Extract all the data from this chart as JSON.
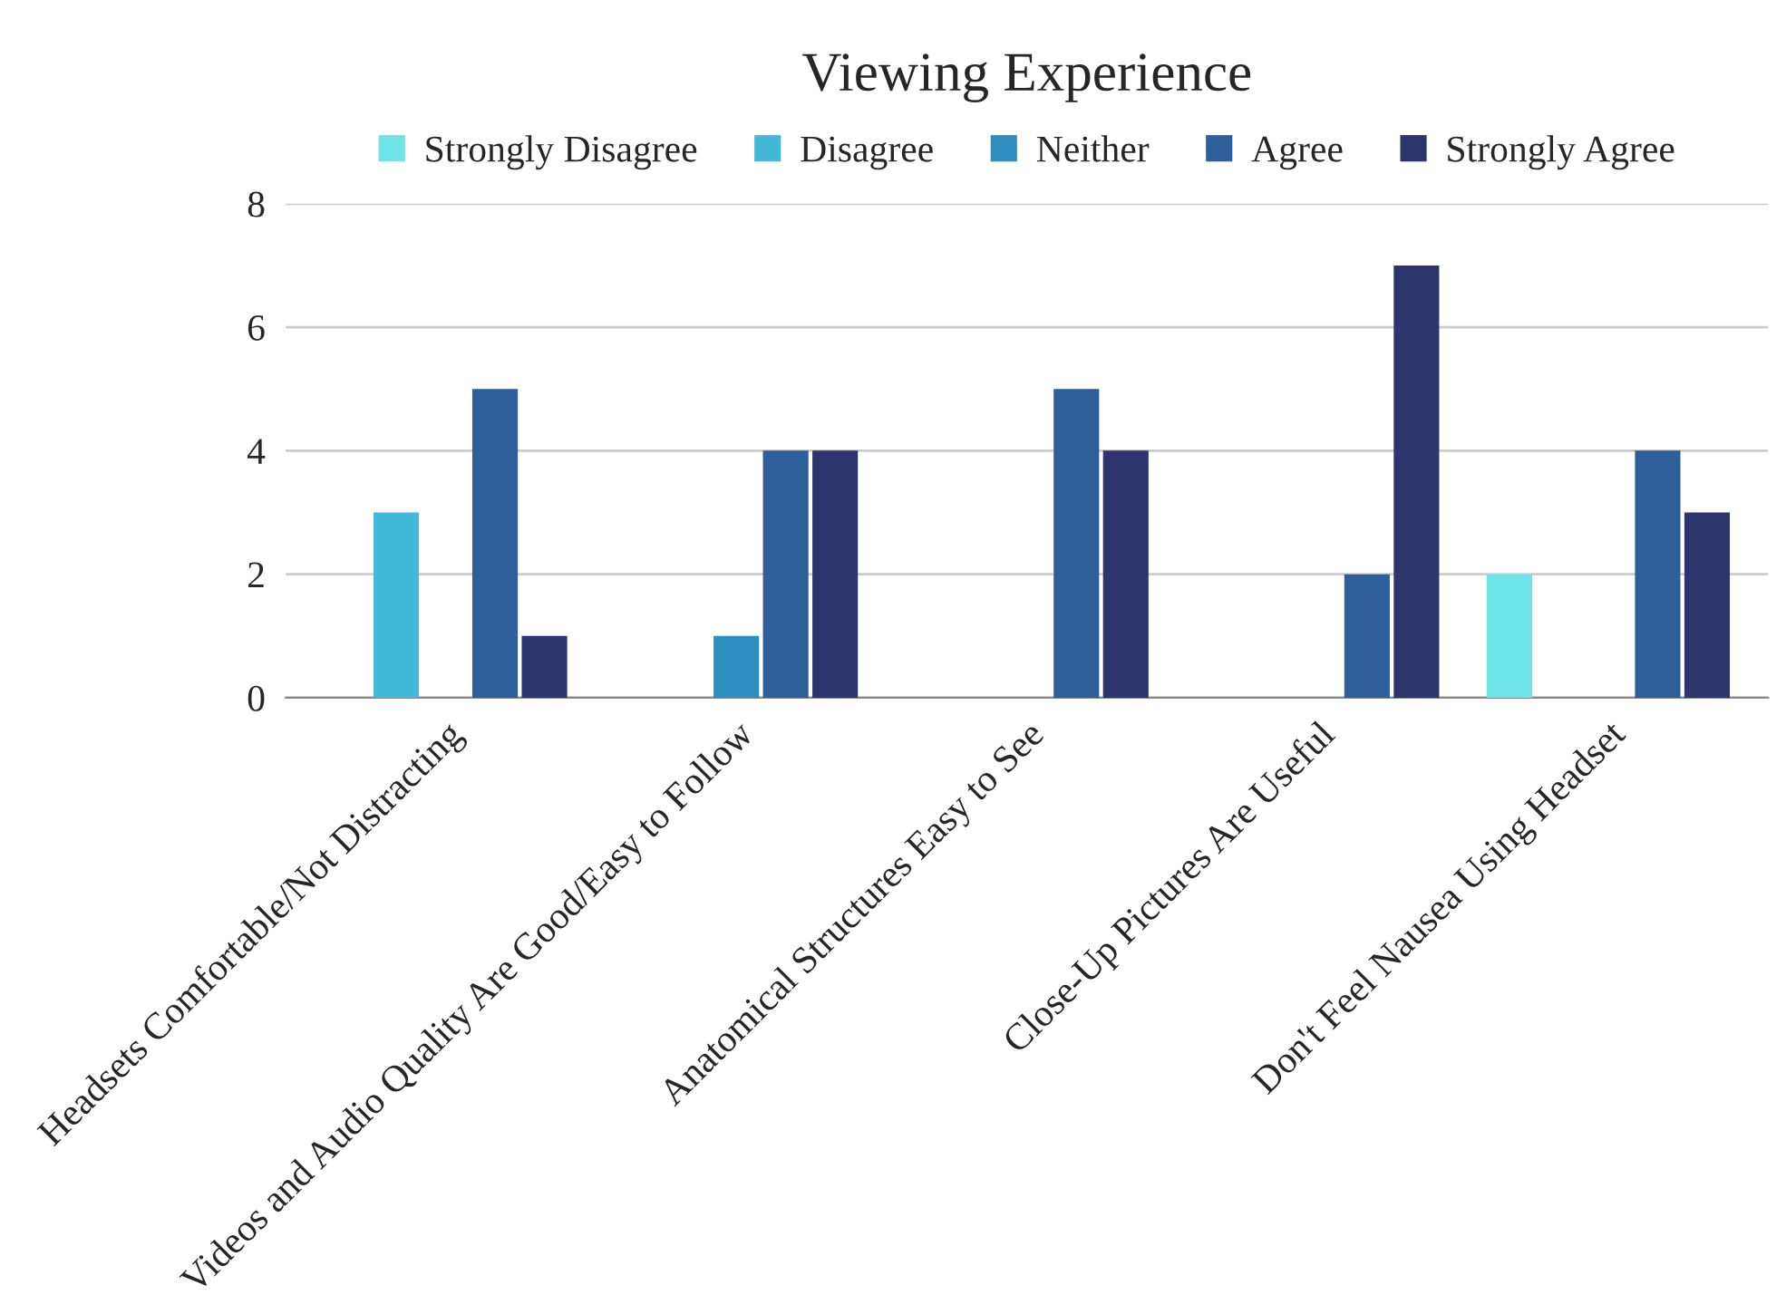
{
  "chart_data": {
    "type": "bar",
    "title": "Viewing Experience",
    "categories": [
      "Headsets Comfortable/Not Distracting",
      "Videos and Audio Quality Are Good/Easy to Follow",
      "Anatomical Structures Easy to See",
      "Close-Up Pictures Are Useful",
      "Don't Feel Nausea Using Headset"
    ],
    "series": [
      {
        "name": "Strongly Disagree",
        "color": "#6ee3e8",
        "values": [
          0,
          0,
          0,
          0,
          2
        ]
      },
      {
        "name": "Disagree",
        "color": "#44b8d8",
        "values": [
          3,
          0,
          0,
          0,
          0
        ]
      },
      {
        "name": "Neither",
        "color": "#2e8ec0",
        "values": [
          0,
          1,
          0,
          0,
          0
        ]
      },
      {
        "name": "Agree",
        "color": "#2e5f9a",
        "values": [
          5,
          4,
          5,
          2,
          4
        ]
      },
      {
        "name": "Strongly Agree",
        "color": "#2d356e",
        "values": [
          1,
          4,
          4,
          7,
          3
        ]
      }
    ],
    "ylim": [
      0,
      8
    ],
    "yticks": [
      0,
      2,
      4,
      6,
      8
    ],
    "grid": "y",
    "legend": "top"
  }
}
